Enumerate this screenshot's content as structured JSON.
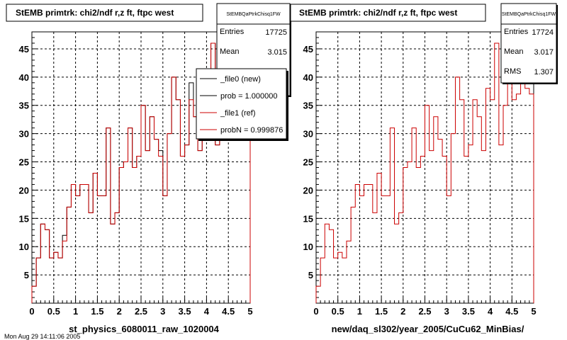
{
  "footer": "Mon Aug 29 14:11:06 2005",
  "colors": {
    "ref": "#cc0000",
    "new": "#000000"
  },
  "chart_data": [
    {
      "type": "histogram",
      "title": "StEMB primtrk: chi2/ndf r,z ft, ftpc west",
      "xlabel": "st_physics_6080011_raw_1020004",
      "xlim": [
        0,
        5
      ],
      "ylim": [
        0,
        48
      ],
      "xticks": [
        0,
        0.5,
        1,
        1.5,
        2,
        2.5,
        3,
        3.5,
        4,
        4.5,
        5
      ],
      "xtick_labels": [
        "0",
        "0.5",
        "1",
        "1.5",
        "2",
        "2.5",
        "3",
        "3.5",
        "4",
        "4.5",
        "5"
      ],
      "yticks": [
        5,
        10,
        15,
        20,
        25,
        30,
        35,
        40,
        45
      ],
      "ytick_labels": [
        "5",
        "10",
        "15",
        "20",
        "25",
        "30",
        "35",
        "40",
        "45"
      ],
      "bin_width": 0.1,
      "grid": true,
      "stats": {
        "name": "StEMBQaPtrkChisq1FW",
        "entries_label": "Entries",
        "entries": "17725",
        "mean_label": "Mean",
        "mean": "3.015"
      },
      "legend": {
        "placement": "top-right",
        "entries": [
          {
            "label": "_file0 (new)",
            "color": "#000000"
          },
          {
            "label": "prob = 1.000000",
            "color": "#000000"
          },
          {
            "label": "_file1 (ref)",
            "color": "#cc0000"
          },
          {
            "label": "probN = 0.999876",
            "color": "#cc0000"
          }
        ]
      },
      "series": [
        {
          "color": "#000000",
          "values": [
            3,
            8,
            14,
            13,
            8,
            9,
            8,
            12,
            17,
            21,
            19,
            21,
            21,
            16,
            23,
            19,
            19,
            31,
            14,
            16,
            24,
            25,
            31,
            24,
            26,
            35,
            27,
            33,
            29,
            27,
            19,
            30,
            40,
            36,
            26,
            28,
            39,
            33,
            27,
            38,
            36,
            46,
            28,
            35,
            41,
            36,
            37,
            39,
            38,
            37
          ]
        },
        {
          "color": "#cc0000",
          "values": [
            3,
            8,
            14,
            13,
            8,
            9,
            8,
            11,
            17,
            21,
            19,
            21,
            21,
            16,
            23,
            19,
            19,
            31,
            14,
            16,
            24,
            25,
            31,
            24,
            26,
            35,
            27,
            33,
            29,
            26,
            19,
            30,
            40,
            36,
            26,
            28,
            36,
            33,
            27,
            38,
            36,
            46,
            28,
            35,
            41,
            36,
            37,
            39,
            38,
            37
          ]
        }
      ]
    },
    {
      "type": "histogram",
      "title": "StEMB primtrk: chi2/ndf r,z ft, ftpc west",
      "xlabel": "new/daq_sl302/year_2005/CuCu62_MinBias/",
      "xlim": [
        0,
        5
      ],
      "ylim": [
        0,
        48
      ],
      "xticks": [
        0,
        0.5,
        1,
        1.5,
        2,
        2.5,
        3,
        3.5,
        4,
        4.5,
        5
      ],
      "xtick_labels": [
        "0",
        "0.5",
        "1",
        "1.5",
        "2",
        "2.5",
        "3",
        "3.5",
        "4",
        "4.5",
        "5"
      ],
      "yticks": [
        5,
        10,
        15,
        20,
        25,
        30,
        35,
        40,
        45
      ],
      "ytick_labels": [
        "5",
        "10",
        "15",
        "20",
        "25",
        "30",
        "35",
        "40",
        "45"
      ],
      "bin_width": 0.1,
      "grid": true,
      "stats": {
        "name": "StEMBQaPtrkChisq1FW",
        "entries_label": "Entries",
        "entries": "17724",
        "mean_label": "Mean",
        "mean": "3.017",
        "rms_label": "RMS",
        "rms": "1.307"
      },
      "series": [
        {
          "color": "#cc0000",
          "values": [
            3,
            8,
            14,
            13,
            8,
            9,
            8,
            11,
            17,
            21,
            19,
            21,
            21,
            16,
            23,
            19,
            19,
            31,
            14,
            16,
            24,
            25,
            31,
            24,
            26,
            35,
            27,
            33,
            29,
            26,
            19,
            30,
            40,
            36,
            26,
            28,
            36,
            33,
            27,
            38,
            36,
            46,
            28,
            35,
            41,
            36,
            37,
            39,
            38,
            37
          ]
        }
      ]
    }
  ]
}
